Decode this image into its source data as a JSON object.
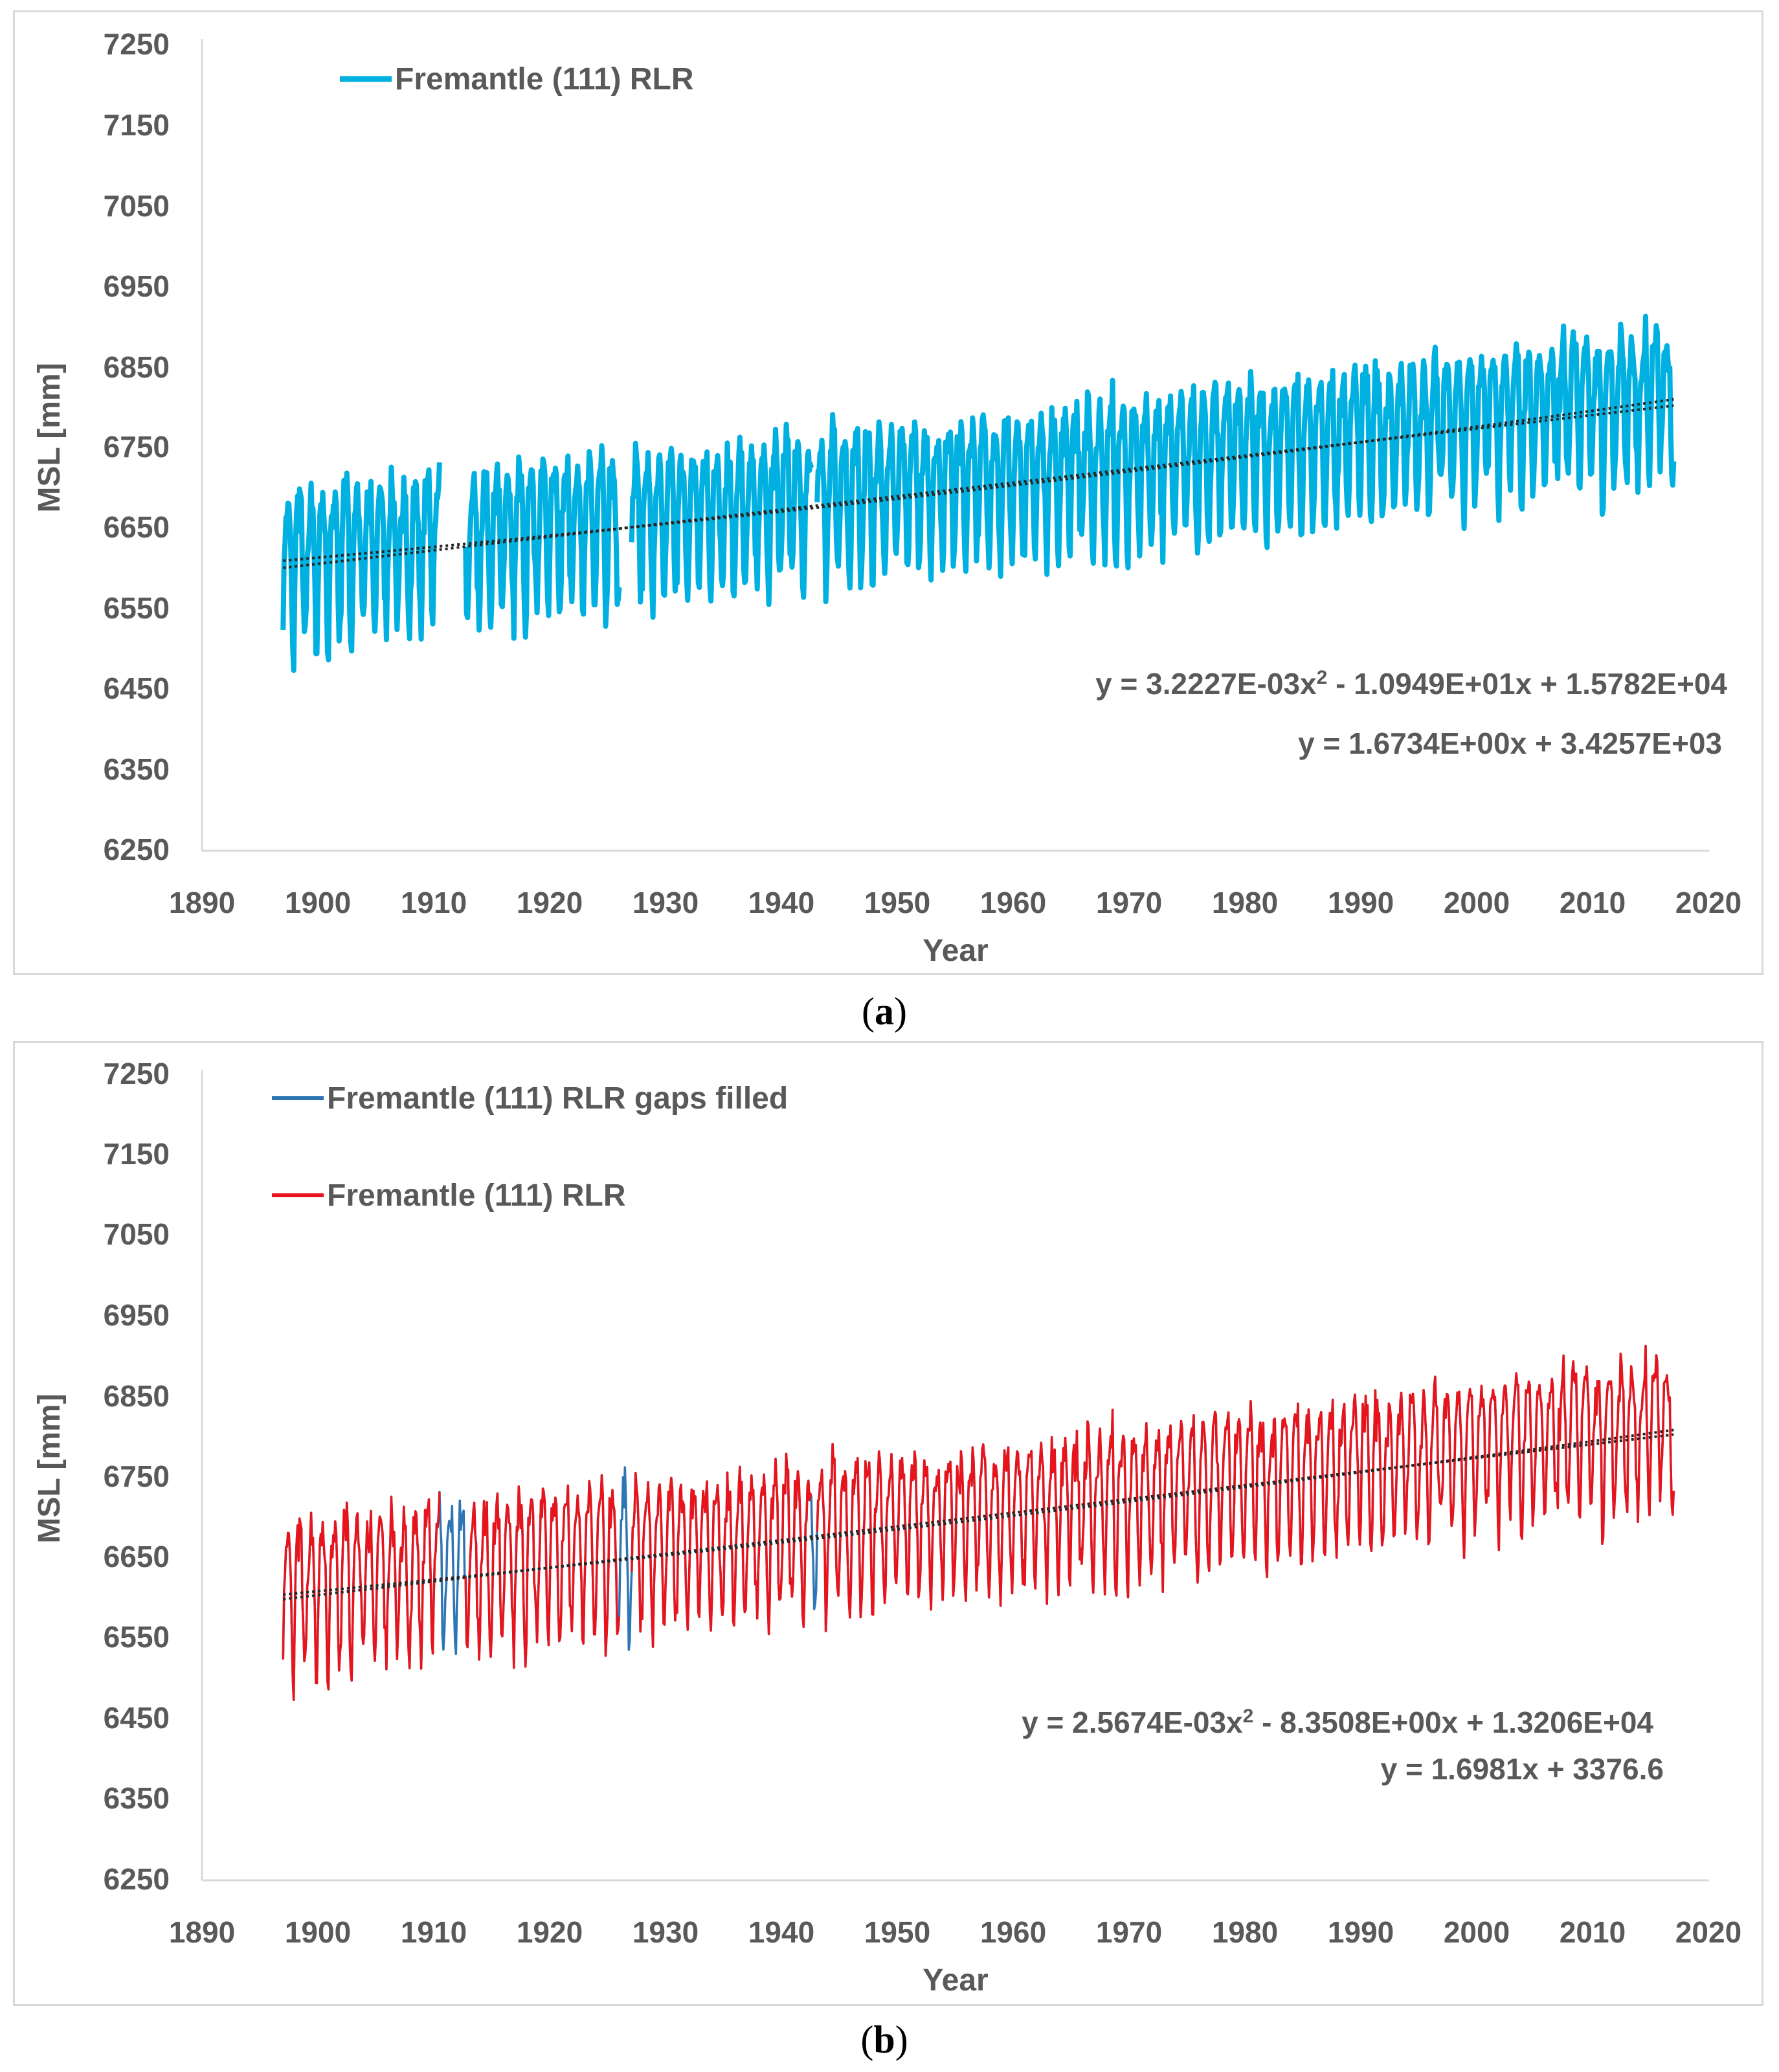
{
  "chart_data": [
    {
      "panel_label": "a",
      "type": "line",
      "xlabel": "Year",
      "ylabel": "MSL [mm]",
      "xlim": [
        1890,
        2020
      ],
      "ylim": [
        6250,
        7250
      ],
      "xticks": [
        "1890",
        "1900",
        "1910",
        "1920",
        "1930",
        "1940",
        "1950",
        "1960",
        "1970",
        "1980",
        "1990",
        "2000",
        "2010",
        "2020"
      ],
      "yticks": [
        "7250",
        "7150",
        "7050",
        "6950",
        "6850",
        "6750",
        "6650",
        "6550",
        "6450",
        "6350",
        "6250"
      ],
      "legend_position": "top-left",
      "series": [
        {
          "name": "Fremantle (111) RLR",
          "color": "#00b0e0",
          "gaps": [
            [
              1910.5,
              1912.7
            ],
            [
              1926.0,
              1927.0
            ],
            [
              1942.6,
              1943.0
            ]
          ]
        }
      ],
      "trendlines": [
        {
          "kind": "polynomial",
          "equation": "y = 3.2227E-03x",
          "superscript": "2",
          "equation_rest": " - 1.0949E+01x + 1.5782E+04",
          "coefficients": [
            0.0032227,
            -10.949,
            15782
          ]
        },
        {
          "kind": "linear",
          "equation": "y = 1.6734E+00x + 3.4257E+03",
          "coefficients": [
            1.6734,
            3425.7
          ]
        }
      ]
    },
    {
      "panel_label": "b",
      "type": "line",
      "xlabel": "Year",
      "ylabel": "MSL [mm]",
      "xlim": [
        1890,
        2020
      ],
      "ylim": [
        6250,
        7250
      ],
      "xticks": [
        "1890",
        "1900",
        "1910",
        "1920",
        "1930",
        "1940",
        "1950",
        "1960",
        "1970",
        "1980",
        "1990",
        "2000",
        "2010",
        "2020"
      ],
      "yticks": [
        "7250",
        "7150",
        "7050",
        "6950",
        "6850",
        "6750",
        "6650",
        "6550",
        "6450",
        "6350",
        "6250"
      ],
      "legend_position": "top-left",
      "series": [
        {
          "name": "Fremantle (111) RLR gaps filled",
          "color": "#2e75b6",
          "gaps": []
        },
        {
          "name": "Fremantle (111) RLR",
          "color": "#e8141c",
          "gaps": [
            [
              1910.5,
              1912.7
            ],
            [
              1926.0,
              1927.0
            ],
            [
              1942.6,
              1943.0
            ]
          ]
        }
      ],
      "trendlines": [
        {
          "kind": "polynomial",
          "equation": "y = 2.5674E-03x",
          "superscript": "2",
          "equation_rest": " - 8.3508E+00x + 1.3206E+04",
          "coefficients": [
            0.0025674,
            -8.3508,
            13206
          ]
        },
        {
          "kind": "linear",
          "equation": "y = 1.6981x + 3376.6",
          "coefficients": [
            1.6981,
            3376.6
          ]
        }
      ]
    }
  ]
}
